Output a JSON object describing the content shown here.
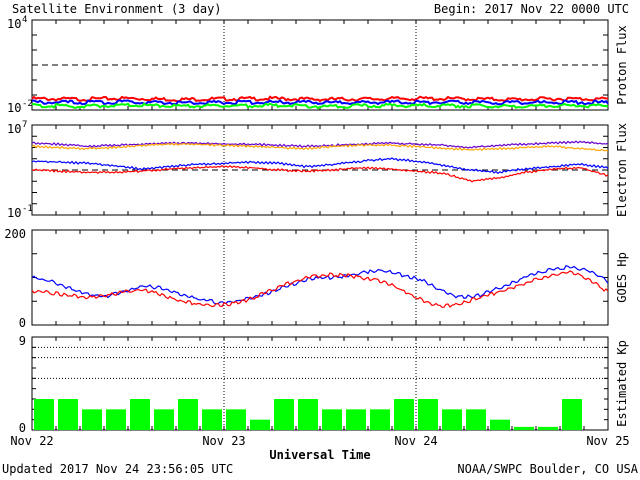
{
  "header": {
    "title": "Satellite Environment (3 day)",
    "begin": "Begin:  2017 Nov 22 0000 UTC"
  },
  "footer": {
    "updated": "Updated 2017 Nov 24 23:56:05 UTC",
    "credit": "NOAA/SWPC Boulder, CO USA"
  },
  "colors": {
    "red": "#ff0000",
    "blue": "#0000ff",
    "green": "#00ff00",
    "orange": "#ffa500",
    "purple": "#6600cc"
  },
  "chart_data": [
    {
      "type": "line",
      "ylabel": "Proton Flux",
      "ymin_label": "10",
      "ymin_exp": "-2",
      "ymax_label": "10",
      "ymax_exp": "4",
      "ylim_log10": [
        -2,
        4
      ],
      "threshold_log10": 1,
      "series": [
        {
          "color": "red",
          "log10_values": [
            -1.25,
            -1.28,
            -1.22,
            -1.3,
            -1.26,
            -1.24,
            -1.29,
            -1.27,
            -1.23,
            -1.26,
            -1.3,
            -1.25,
            -1.27
          ]
        },
        {
          "color": "blue",
          "log10_values": [
            -1.48,
            -1.5,
            -1.46,
            -1.52,
            -1.49,
            -1.47,
            -1.51,
            -1.5,
            -1.48,
            -1.49,
            -1.52,
            -1.48,
            -1.5
          ]
        },
        {
          "color": "green",
          "log10_values": [
            -1.7,
            -1.75,
            -1.68,
            -1.74,
            -1.72,
            -1.69,
            -1.76,
            -1.71,
            -1.7,
            -1.73,
            -1.75,
            -1.7,
            -1.72
          ]
        }
      ]
    },
    {
      "type": "line",
      "ylabel": "Electron Flux",
      "ymin_label": "10",
      "ymin_exp": "-1",
      "ymax_label": "10",
      "ymax_exp": "7",
      "ylim_log10": [
        -1,
        7
      ],
      "threshold_log10": 3,
      "series": [
        {
          "color": "purple",
          "log10_values": [
            5.4,
            5.3,
            5.1,
            5.2,
            5.3,
            5.4,
            5.4,
            5.3,
            5.3,
            5.2,
            5.1,
            5.2,
            5.3,
            5.4,
            5.3,
            5.2,
            5.0,
            5.2,
            5.3,
            5.4,
            5.5,
            5.3
          ]
        },
        {
          "color": "orange",
          "log10_values": [
            5.1,
            5.0,
            4.9,
            5.0,
            5.2,
            5.3,
            5.3,
            5.2,
            5.1,
            5.0,
            4.9,
            5.1,
            5.2,
            5.2,
            5.1,
            4.9,
            4.8,
            4.9,
            5.0,
            5.1,
            4.9,
            4.7
          ]
        },
        {
          "color": "blue",
          "log10_values": [
            3.8,
            3.7,
            3.6,
            3.4,
            3.1,
            3.3,
            3.5,
            3.6,
            3.7,
            3.6,
            3.3,
            3.5,
            3.8,
            4.0,
            3.8,
            3.4,
            3.0,
            2.8,
            3.1,
            3.3,
            3.5,
            3.2
          ]
        },
        {
          "color": "red",
          "log10_values": [
            3.0,
            2.9,
            2.8,
            2.8,
            2.9,
            3.1,
            3.2,
            3.3,
            3.2,
            3.0,
            2.9,
            3.0,
            3.2,
            3.1,
            2.9,
            2.7,
            2.0,
            2.3,
            2.8,
            3.1,
            3.2,
            2.5
          ]
        }
      ]
    },
    {
      "type": "line",
      "ylabel": "GOES Hp",
      "ylim": [
        0,
        200
      ],
      "ytick_labels": [
        "0",
        "200"
      ],
      "series": [
        {
          "color": "blue",
          "values": [
            100,
            92,
            78,
            65,
            60,
            70,
            82,
            78,
            64,
            54,
            48,
            50,
            58,
            72,
            86,
            98,
            100,
            104,
            112,
            114,
            104,
            95,
            72,
            58,
            62,
            76,
            92,
            108,
            118,
            122,
            114,
            92
          ]
        },
        {
          "color": "red",
          "values": [
            72,
            68,
            62,
            58,
            62,
            70,
            74,
            64,
            50,
            44,
            42,
            46,
            58,
            76,
            90,
            102,
            106,
            104,
            98,
            90,
            72,
            52,
            38,
            44,
            58,
            68,
            80,
            94,
            104,
            112,
            94,
            70
          ]
        }
      ]
    },
    {
      "type": "bar",
      "ylabel": "Estimated Kp",
      "ylim": [
        0,
        9
      ],
      "ytick_labels": [
        "0",
        "9"
      ],
      "values": [
        3,
        3,
        2,
        2,
        3,
        2,
        3,
        2,
        2,
        1,
        3,
        3,
        2,
        2,
        2,
        3,
        3,
        2,
        2,
        1,
        0.3,
        0.3,
        3,
        0
      ],
      "bar_color": "#00ff00"
    }
  ],
  "xaxis": {
    "tick_labels": [
      "Nov 22",
      "Nov 23",
      "Nov 24",
      "Nov 25"
    ],
    "label": "Universal Time"
  }
}
